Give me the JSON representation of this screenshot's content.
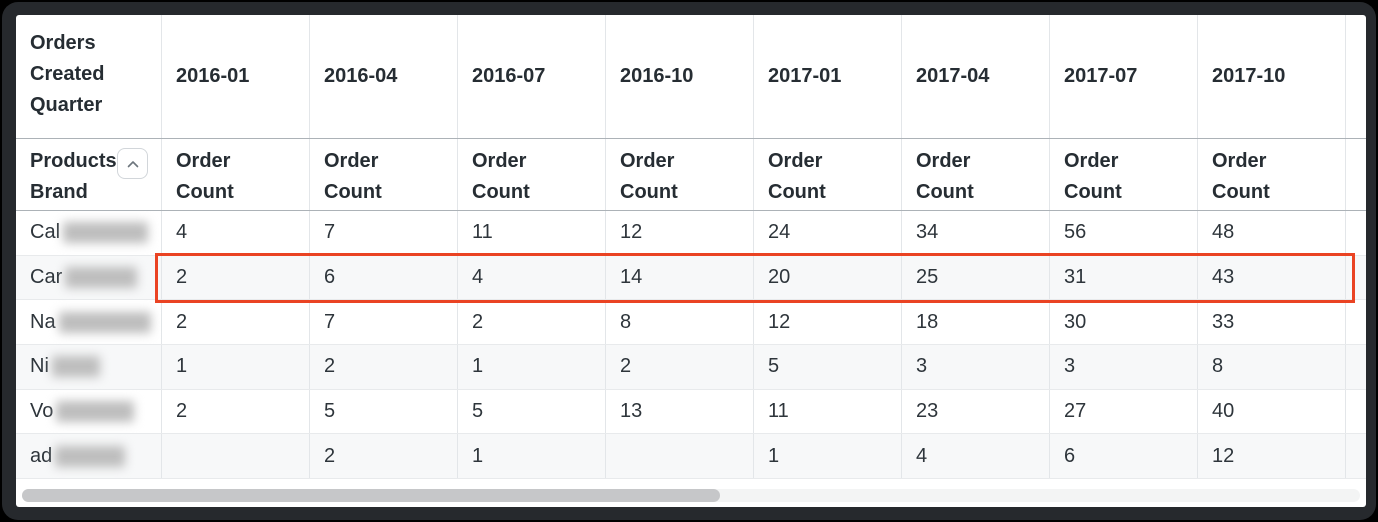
{
  "table": {
    "corner_label": "Orders Created Quarter",
    "row_dimension_label": "Products Brand",
    "sort_icon": "chevron-up-icon",
    "quarters": [
      "2016-01",
      "2016-04",
      "2016-07",
      "2016-10",
      "2017-01",
      "2017-04",
      "2017-07",
      "2017-10"
    ],
    "measure_label": "Order Count",
    "rows": [
      {
        "brand_prefix": "Cal",
        "redacted": true,
        "blur_width": 85,
        "highlighted": false,
        "values": [
          "4",
          "7",
          "11",
          "12",
          "24",
          "34",
          "56",
          "48"
        ]
      },
      {
        "brand_prefix": "Car",
        "redacted": true,
        "blur_width": 72,
        "highlighted": true,
        "values": [
          "2",
          "6",
          "4",
          "14",
          "20",
          "25",
          "31",
          "43"
        ]
      },
      {
        "brand_prefix": "Na",
        "redacted": true,
        "blur_width": 92,
        "highlighted": false,
        "values": [
          "2",
          "7",
          "2",
          "8",
          "12",
          "18",
          "30",
          "33"
        ]
      },
      {
        "brand_prefix": "Ni",
        "redacted": true,
        "blur_width": 48,
        "highlighted": false,
        "values": [
          "1",
          "2",
          "1",
          "2",
          "5",
          "3",
          "3",
          "8"
        ]
      },
      {
        "brand_prefix": "Vo",
        "redacted": true,
        "blur_width": 78,
        "highlighted": false,
        "values": [
          "2",
          "5",
          "5",
          "13",
          "11",
          "23",
          "27",
          "40"
        ]
      },
      {
        "brand_prefix": "ad",
        "redacted": true,
        "blur_width": 70,
        "highlighted": false,
        "values": [
          "",
          "2",
          "1",
          "",
          "1",
          "4",
          "6",
          "12"
        ]
      }
    ],
    "colors": {
      "highlight_border": "#ea4323",
      "stripe_row": "#f7f8f9",
      "header_text": "#262d33"
    }
  },
  "scrollbar": {
    "orientation": "horizontal",
    "thumb_position": "left"
  }
}
